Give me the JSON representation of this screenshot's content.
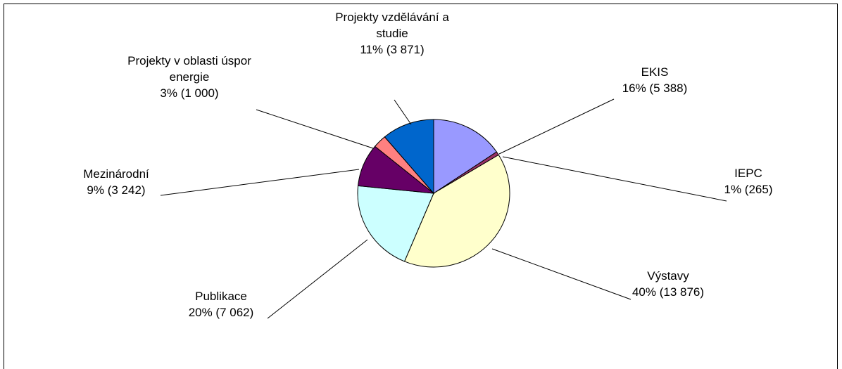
{
  "chart_data": {
    "type": "pie",
    "slices": [
      {
        "label_lines": [
          "EKIS",
          "16% (5 388)"
        ],
        "name": "EKIS",
        "percent": 16,
        "value": 5388,
        "color": "#9999ff"
      },
      {
        "label_lines": [
          "IEPC",
          "1% (265)"
        ],
        "name": "IEPC",
        "percent": 1,
        "value": 265,
        "color": "#993366"
      },
      {
        "label_lines": [
          "Výstavy",
          "40% (13 876)"
        ],
        "name": "Výstavy",
        "percent": 40,
        "value": 13876,
        "color": "#ffffcc"
      },
      {
        "label_lines": [
          "Publikace",
          "20% (7 062)"
        ],
        "name": "Publikace",
        "percent": 20,
        "value": 7062,
        "color": "#ccffff"
      },
      {
        "label_lines": [
          "Mezinárodní",
          "9% (3 242)"
        ],
        "name": "Mezinárodní",
        "percent": 9,
        "value": 3242,
        "color": "#660066"
      },
      {
        "label_lines": [
          "Projekty v oblasti úspor",
          "energie",
          "3% (1 000)"
        ],
        "name": "Projekty v oblasti úspor energie",
        "percent": 3,
        "value": 1000,
        "color": "#ff8080"
      },
      {
        "label_lines": [
          "Projekty vzdělávání a",
          "studie",
          "11% (3 871)"
        ],
        "name": "Projekty vzdělávání a studie",
        "percent": 11,
        "value": 3871,
        "color": "#0066cc"
      }
    ],
    "start_position": "12 o'clock",
    "direction": "clockwise",
    "legend": "none"
  }
}
